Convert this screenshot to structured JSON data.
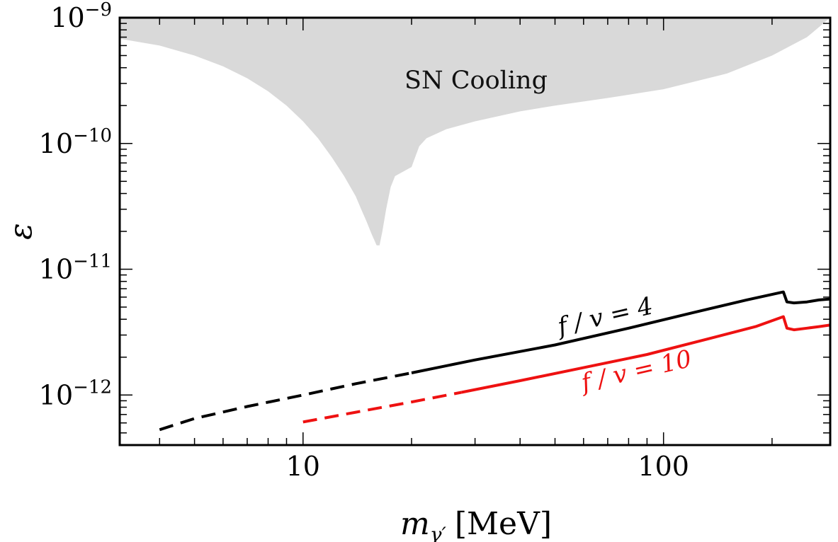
{
  "chart_data": {
    "type": "line",
    "xscale": "log",
    "yscale": "log",
    "xlim": [
      3.1,
      290
    ],
    "ylim": [
      4e-13,
      1e-09
    ],
    "grid": false,
    "legend": "none",
    "xlabel": {
      "main": "m",
      "sub": "γ′",
      "unit": "[MeV]"
    },
    "ylabel": "ε",
    "xticks": [
      {
        "value": 10,
        "label": "10"
      },
      {
        "value": 100,
        "label": "100"
      }
    ],
    "yticks": [
      {
        "value": 1e-12,
        "base": "10",
        "exp": "−12"
      },
      {
        "value": 1e-11,
        "base": "10",
        "exp": "−11"
      },
      {
        "value": 1e-10,
        "base": "10",
        "exp": "−10"
      },
      {
        "value": 1e-09,
        "base": "10",
        "exp": "−9"
      }
    ],
    "regions": [
      {
        "label": "SN Cooling",
        "color": "#d9d9d9",
        "x": [
          3.1,
          4.0,
          5.0,
          6.0,
          7.0,
          8.0,
          9.0,
          10.0,
          11.0,
          12.0,
          13.0,
          14.0,
          14.5,
          15.0,
          15.5,
          16.0,
          16.3,
          16.6,
          17.0,
          17.5,
          18.0,
          19.0,
          20.0,
          21.0,
          22.0,
          25.0,
          30.0,
          40.0,
          50.0,
          70.0,
          100.0,
          150.0,
          200.0,
          250.0,
          290.0
        ],
        "y": [
          6.8e-10,
          6e-10,
          5e-10,
          4.1e-10,
          3.3e-10,
          2.6e-10,
          2e-10,
          1.5e-10,
          1.1e-10,
          7.8e-11,
          5.5e-11,
          3.8e-11,
          3e-11,
          2.4e-11,
          1.9e-11,
          1.55e-11,
          1.55e-11,
          2e-11,
          3e-11,
          4.5e-11,
          5.5e-11,
          6e-11,
          6.5e-11,
          9.5e-11,
          1.1e-10,
          1.3e-10,
          1.5e-10,
          1.8e-10,
          2e-10,
          2.3e-10,
          2.7e-10,
          3.6e-10,
          5e-10,
          7e-10,
          1e-09
        ]
      }
    ],
    "series": [
      {
        "label": "f / v = 4",
        "color": "#000000",
        "segments": [
          {
            "style": "dashed",
            "x": [
              4.0,
              5.0,
              7.0,
              10.0,
              14.0,
              20.0
            ],
            "y": [
              5.3e-13,
              6.5e-13,
              8.1e-13,
              1e-12,
              1.23e-12,
              1.5e-12
            ]
          },
          {
            "style": "solid",
            "x": [
              20.0,
              30.0,
              50.0,
              80.0,
              120.0,
              170.0,
              215.0,
              220.0,
              230.0,
              250.0,
              270.0,
              290.0
            ],
            "y": [
              1.5e-12,
              1.9e-12,
              2.5e-12,
              3.4e-12,
              4.5e-12,
              5.7e-12,
              6.6e-12,
              5.5e-12,
              5.4e-12,
              5.5e-12,
              5.7e-12,
              5.8e-12
            ]
          }
        ]
      },
      {
        "label": "f / v = 10",
        "color": "#ee1111",
        "segments": [
          {
            "style": "dashed",
            "x": [
              10.0,
              14.0,
              20.0,
              27.5
            ],
            "y": [
              6.1e-13,
              7.3e-13,
              8.8e-13,
              1.05e-12
            ]
          },
          {
            "style": "solid",
            "x": [
              27.5,
              40.0,
              60.0,
              90.0,
              130.0,
              180.0,
              215.0,
              220.0,
              230.0,
              250.0,
              270.0,
              290.0
            ],
            "y": [
              1.05e-12,
              1.3e-12,
              1.65e-12,
              2.1e-12,
              2.75e-12,
              3.5e-12,
              4.2e-12,
              3.4e-12,
              3.3e-12,
              3.4e-12,
              3.5e-12,
              3.6e-12
            ]
          }
        ]
      }
    ],
    "annotations": [
      {
        "text": "f / v = 4",
        "color": "#000000"
      },
      {
        "text": "f / v = 10",
        "color": "#ee1111"
      }
    ]
  }
}
